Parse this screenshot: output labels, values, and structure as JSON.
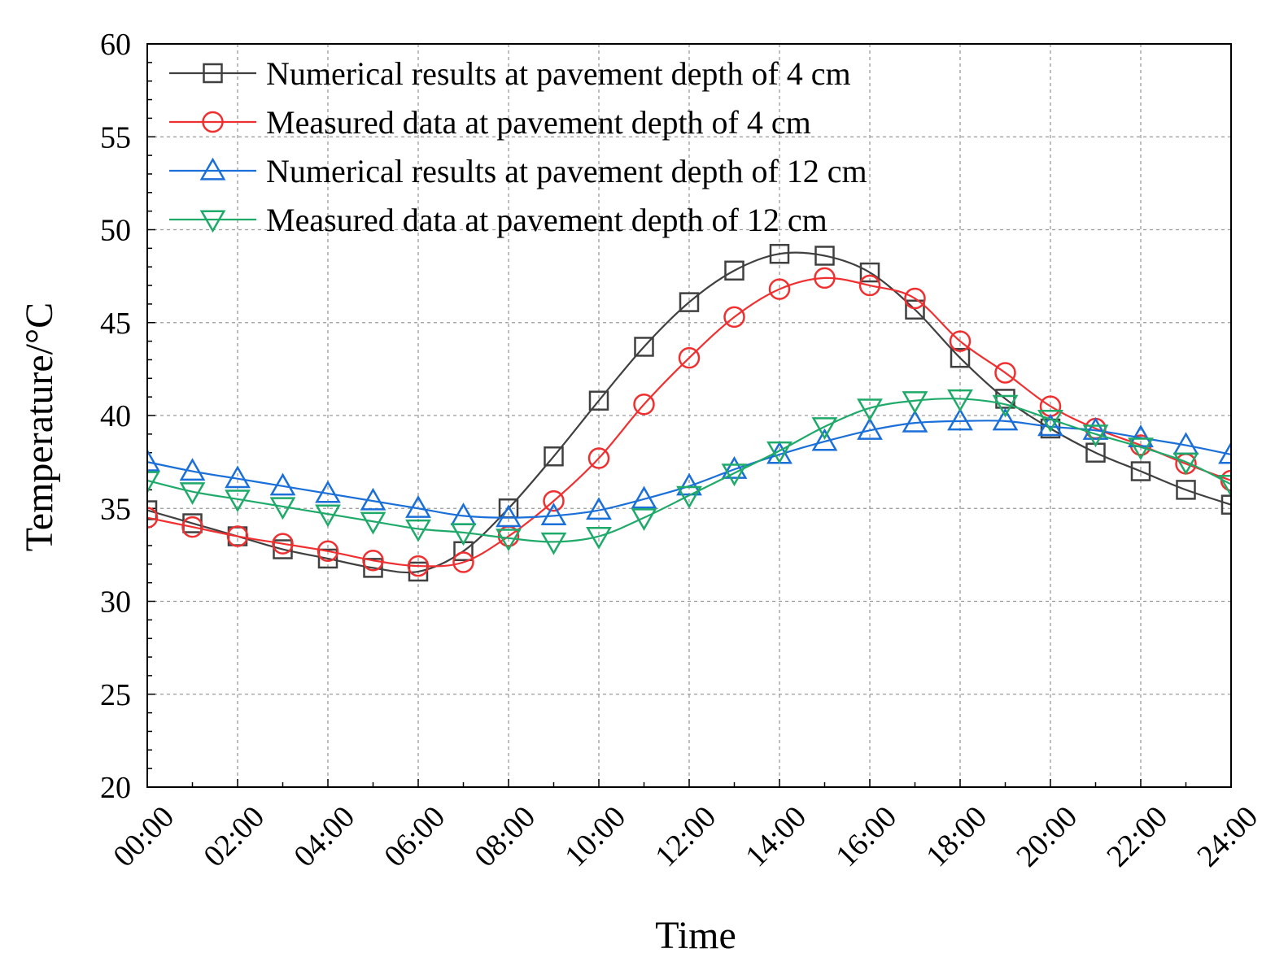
{
  "chart_data": {
    "type": "line",
    "title": "",
    "xlabel": "Time",
    "ylabel": "Temperature/°C",
    "xlim": [
      0,
      24
    ],
    "ylim": [
      20,
      60
    ],
    "x_ticks": [
      {
        "value": 0,
        "label": "00:00"
      },
      {
        "value": 2,
        "label": "02:00"
      },
      {
        "value": 4,
        "label": "04:00"
      },
      {
        "value": 6,
        "label": "06:00"
      },
      {
        "value": 8,
        "label": "08:00"
      },
      {
        "value": 10,
        "label": "10:00"
      },
      {
        "value": 12,
        "label": "12:00"
      },
      {
        "value": 14,
        "label": "14:00"
      },
      {
        "value": 16,
        "label": "16:00"
      },
      {
        "value": 18,
        "label": "18:00"
      },
      {
        "value": 20,
        "label": "20:00"
      },
      {
        "value": 22,
        "label": "22:00"
      },
      {
        "value": 24,
        "label": "24:00"
      }
    ],
    "y_ticks": [
      {
        "value": 20,
        "label": "20"
      },
      {
        "value": 25,
        "label": "25"
      },
      {
        "value": 30,
        "label": "30"
      },
      {
        "value": 35,
        "label": "35"
      },
      {
        "value": 40,
        "label": "40"
      },
      {
        "value": 45,
        "label": "45"
      },
      {
        "value": 50,
        "label": "50"
      },
      {
        "value": 55,
        "label": "55"
      },
      {
        "value": 60,
        "label": "60"
      }
    ],
    "grid": true,
    "legend_position": "top-left",
    "x": [
      0,
      1,
      2,
      3,
      4,
      5,
      6,
      7,
      8,
      9,
      10,
      11,
      12,
      13,
      14,
      15,
      16,
      17,
      18,
      19,
      20,
      21,
      22,
      23,
      24
    ],
    "series": [
      {
        "name": "Numerical results at pavement depth of 4 cm",
        "color": "#404040",
        "marker": "square",
        "values": [
          34.9,
          34.2,
          33.5,
          32.8,
          32.3,
          31.8,
          31.6,
          32.7,
          35.0,
          37.8,
          40.8,
          43.7,
          46.1,
          47.8,
          48.7,
          48.6,
          47.7,
          45.7,
          43.1,
          40.9,
          39.3,
          38.0,
          37.0,
          36.0,
          35.2
        ]
      },
      {
        "name": "Measured data at pavement depth of 4 cm",
        "color": "#f03030",
        "marker": "circle",
        "values": [
          34.5,
          34.0,
          33.5,
          33.1,
          32.7,
          32.2,
          31.9,
          32.1,
          33.5,
          35.4,
          37.7,
          40.6,
          43.1,
          45.3,
          46.8,
          47.4,
          47.0,
          46.3,
          44.0,
          42.3,
          40.5,
          39.3,
          38.4,
          37.4,
          36.5
        ]
      },
      {
        "name": "Numerical results at pavement depth of 12 cm",
        "color": "#1a6fd8",
        "marker": "triangle-up",
        "values": [
          37.5,
          37.0,
          36.6,
          36.2,
          35.8,
          35.4,
          35.0,
          34.6,
          34.5,
          34.6,
          34.9,
          35.5,
          36.2,
          37.1,
          37.9,
          38.6,
          39.2,
          39.6,
          39.7,
          39.7,
          39.4,
          39.2,
          38.8,
          38.4,
          37.9
        ]
      },
      {
        "name": "Measured data at pavement depth of 12 cm",
        "color": "#1faa6a",
        "marker": "triangle-down",
        "values": [
          36.5,
          35.9,
          35.5,
          35.1,
          34.7,
          34.3,
          33.9,
          33.7,
          33.4,
          33.2,
          33.5,
          34.5,
          35.7,
          36.9,
          38.1,
          39.4,
          40.4,
          40.8,
          40.9,
          40.6,
          39.8,
          39.0,
          38.3,
          37.5,
          36.3
        ]
      }
    ]
  }
}
